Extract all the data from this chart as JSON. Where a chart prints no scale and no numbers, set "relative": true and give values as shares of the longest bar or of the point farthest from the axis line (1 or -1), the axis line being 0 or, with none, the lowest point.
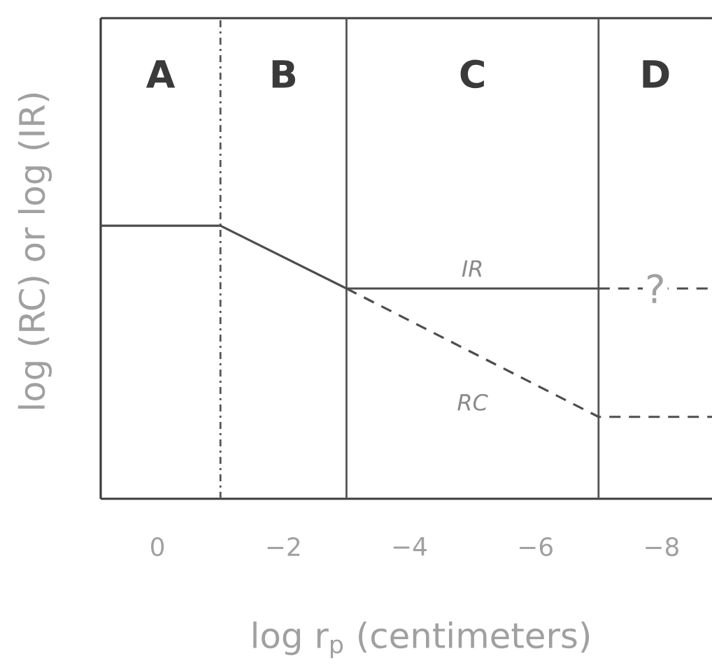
{
  "chart_data": {
    "type": "line",
    "relative": true,
    "xlabel": "log r$_{p}$ (centimeters)",
    "ylabel": "log (RC) or log (IR)",
    "xlim": [
      0.9,
      -8.8
    ],
    "xticks": [
      0,
      {
        "value": -2,
        "label": "−2"
      },
      {
        "value": -4,
        "label": "−4"
      },
      {
        "value": -6,
        "label": "−6"
      },
      {
        "value": -8,
        "label": "−8"
      }
    ],
    "series": [
      {
        "name": "IR",
        "color": "#4d4d4d",
        "x": [
          0.9,
          -1,
          -3,
          -7
        ],
        "values": [
          1,
          1,
          0.77,
          0.77
        ]
      },
      {
        "color": "#4d4d4d",
        "line_style": "dashed",
        "x": [
          -7,
          -8.8
        ],
        "values": [
          0.77,
          0.77
        ]
      },
      {
        "name": "RC",
        "color": "#4d4d4d",
        "line_style": "dashed",
        "x": [
          -3,
          -7,
          -8.8
        ],
        "values": [
          0.77,
          0.3,
          0.3
        ]
      }
    ],
    "ref_lines": [
      {
        "axis": "x",
        "value": -1,
        "line_style": "dashdot",
        "color": "#555555"
      },
      {
        "axis": "x",
        "value": -3,
        "color": "#555555"
      },
      {
        "axis": "x",
        "value": -7,
        "color": "#555555"
      }
    ],
    "annotations": [
      "A",
      "B",
      "C",
      "D",
      {
        "text": "?",
        "x": -7.9,
        "y": 0.77
      }
    ]
  }
}
